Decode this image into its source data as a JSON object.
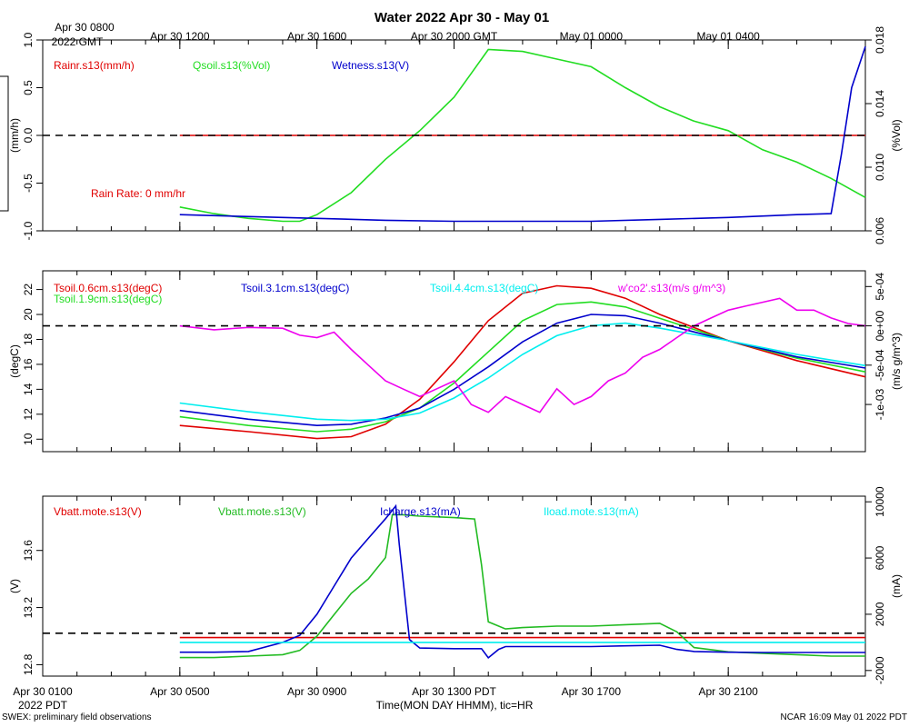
{
  "title": "Water 2022 Apr 30 - May 01",
  "top_axis": {
    "first_label": [
      "Apr 30 0800",
      "2022 GMT"
    ],
    "tick_labels": [
      "Apr 30 1200",
      "Apr 30 1600",
      "Apr 30 2000 GMT",
      "May 01 0000",
      "May 01 0400"
    ]
  },
  "bottom_axis": {
    "first_label": [
      "Apr 30 0100",
      "2022 PDT"
    ],
    "tick_labels": [
      "Apr 30 0500",
      "Apr 30 0900",
      "Apr 30 1300 PDT",
      "Apr 30 1700",
      "Apr 30 2100"
    ],
    "xlabel": "Time(MON DAY HHMM), tic=HR"
  },
  "footer": {
    "left": "SWEX: preliminary field observations",
    "right": "NCAR 16:09 May 01 2022 PDT"
  },
  "colors": {
    "red": "#e00000",
    "green": "#22dd22",
    "blue": "#0000cc",
    "cyan": "#00eeee",
    "magenta": "#ee00ee",
    "dark_green": "#22bb22"
  },
  "chart_data": [
    {
      "type": "line",
      "panel": "water",
      "x_unit": "hours since Apr 30 0100 PDT",
      "xlim": [
        0,
        24
      ],
      "left_axis": {
        "label": "(mm/h)",
        "ylim": [
          -1.0,
          1.0
        ],
        "ticks": [
          "1.0",
          "0.5",
          "0.0",
          "-0.5",
          "-1.0"
        ]
      },
      "right_axis": {
        "label": "(%Vol)",
        "ylim": [
          0.006,
          0.018
        ],
        "ticks": [
          "0.018",
          "0.014",
          "0.010",
          "0.006"
        ]
      },
      "reference_line": 0.0,
      "annotation": "Rain Rate: 0 mm/hr",
      "series": [
        {
          "name": "Rainr.s13(mm/h)",
          "color": "#e00000",
          "axis": "left",
          "x": [
            4,
            24
          ],
          "y": [
            0.0,
            0.0
          ]
        },
        {
          "name": "Qsoil.s13(%Vol)",
          "color": "#22dd22",
          "axis": "left",
          "x": [
            4,
            5,
            6,
            7,
            7.5,
            8,
            9,
            10,
            11,
            12,
            12.5,
            13,
            14,
            15,
            16,
            17,
            18,
            19,
            20,
            21,
            22,
            23,
            24
          ],
          "y": [
            -0.75,
            -0.82,
            -0.87,
            -0.9,
            -0.9,
            -0.83,
            -0.6,
            -0.25,
            0.05,
            0.4,
            0.65,
            0.9,
            0.88,
            0.8,
            0.72,
            0.5,
            0.3,
            0.15,
            0.05,
            -0.15,
            -0.28,
            -0.45,
            -0.65
          ]
        },
        {
          "name": "Wetness.s13(V)",
          "color": "#0000cc",
          "axis": "left",
          "x": [
            4,
            6,
            8,
            10,
            12,
            14,
            16,
            18,
            20,
            22,
            23,
            23.3,
            23.6,
            24
          ],
          "y": [
            -0.83,
            -0.85,
            -0.87,
            -0.89,
            -0.9,
            -0.9,
            -0.9,
            -0.88,
            -0.86,
            -0.83,
            -0.82,
            -0.2,
            0.5,
            0.93
          ]
        }
      ]
    },
    {
      "type": "line",
      "panel": "soil temperature",
      "x_unit": "hours since Apr 30 0100 PDT",
      "xlim": [
        0,
        24
      ],
      "left_axis": {
        "label": "(degC)",
        "ylim": [
          9,
          23.5
        ],
        "ticks": [
          "22",
          "20",
          "18",
          "16",
          "14",
          "12",
          "10"
        ]
      },
      "right_axis": {
        "label": "(m/s g/m^3)",
        "ylim": [
          -0.0016,
          0.0007
        ],
        "ticks": [
          "5e-04",
          "0e+00",
          "-5e-04",
          "-1e-03"
        ]
      },
      "reference_line_right": 0.0,
      "series": [
        {
          "name": "Tsoil.0.6cm.s13(degC)",
          "color": "#e00000",
          "axis": "left",
          "x": [
            4,
            6,
            8,
            9,
            10,
            11,
            12,
            13,
            14,
            15,
            16,
            17,
            18,
            20,
            22,
            24
          ],
          "y": [
            11.1,
            10.6,
            10.05,
            10.2,
            11.2,
            13.2,
            16.2,
            19.5,
            21.7,
            22.3,
            22.1,
            21.3,
            20.0,
            17.9,
            16.3,
            15.0
          ]
        },
        {
          "name": "Tsoil.1.9cm.s13(degC)",
          "color": "#22dd22",
          "axis": "left",
          "x": [
            4,
            6,
            8,
            9,
            10,
            11,
            12,
            13,
            14,
            15,
            16,
            17,
            18,
            20,
            22,
            24
          ],
          "y": [
            11.8,
            11.1,
            10.6,
            10.8,
            11.4,
            12.5,
            14.5,
            17.0,
            19.5,
            20.8,
            21.0,
            20.6,
            19.7,
            17.9,
            16.5,
            15.4
          ]
        },
        {
          "name": "Tsoil.3.1cm.s13(degC)",
          "color": "#0000cc",
          "axis": "left",
          "x": [
            4,
            6,
            8,
            9,
            10,
            11,
            12,
            13,
            14,
            15,
            16,
            17,
            18,
            20,
            22,
            24
          ],
          "y": [
            12.3,
            11.6,
            11.1,
            11.2,
            11.7,
            12.5,
            14.0,
            15.8,
            17.8,
            19.3,
            20.0,
            19.9,
            19.3,
            17.9,
            16.6,
            15.7
          ]
        },
        {
          "name": "Tsoil.4.4cm.s13(degC)",
          "color": "#00eeee",
          "axis": "left",
          "x": [
            4,
            6,
            8,
            9,
            10,
            11,
            12,
            13,
            14,
            15,
            16,
            17,
            18,
            20,
            22,
            24
          ],
          "y": [
            12.9,
            12.2,
            11.6,
            11.5,
            11.6,
            12.1,
            13.3,
            14.9,
            16.8,
            18.3,
            19.1,
            19.3,
            18.9,
            17.9,
            16.8,
            15.9
          ]
        },
        {
          "name": "w'co2'.s13(m/s g/m^3)",
          "color": "#ee00ee",
          "axis": "right",
          "x": [
            4,
            5,
            6,
            7,
            7.5,
            8,
            8.5,
            9,
            9.5,
            10,
            10.5,
            11,
            11.5,
            12,
            12.5,
            13,
            13.5,
            14,
            14.5,
            15,
            15.5,
            16,
            16.5,
            17,
            17.5,
            18,
            18.5,
            19,
            19.5,
            20,
            20.5,
            21,
            21.5,
            22,
            22.5,
            23,
            23.5,
            24
          ],
          "y": [
            0.0,
            -5e-05,
            -2e-05,
            -3e-05,
            -0.00012,
            -0.00015,
            -8e-05,
            -0.0003,
            -0.0005,
            -0.0007,
            -0.0008,
            -0.0009,
            -0.0008,
            -0.0007,
            -0.001,
            -0.0011,
            -0.0009,
            -0.001,
            -0.0011,
            -0.0008,
            -0.001,
            -0.0009,
            -0.0007,
            -0.0006,
            -0.0004,
            -0.0003,
            -0.00015,
            0.0,
            0.0001,
            0.0002,
            0.00025,
            0.0003,
            0.00035,
            0.0002,
            0.0002,
            0.0001,
            3e-05,
            0.0
          ]
        }
      ]
    },
    {
      "type": "line",
      "panel": "power",
      "x_unit": "hours since Apr 30 0100 PDT",
      "xlim": [
        0,
        24
      ],
      "left_axis": {
        "label": "(V)",
        "ylim": [
          12.72,
          13.98
        ],
        "ticks": [
          "13.6",
          "13.2",
          "12.8"
        ]
      },
      "right_axis": {
        "label": "(mA)",
        "ylim": [
          -2400,
          10400
        ],
        "ticks": [
          "10000",
          "6000",
          "2000",
          "-2000"
        ]
      },
      "reference_line_left": 13.02,
      "series": [
        {
          "name": "Vbatt.mote.s13(V)",
          "color": "#e00000",
          "axis": "left",
          "x": [
            4,
            24
          ],
          "y": [
            12.99,
            12.99
          ]
        },
        {
          "name": "Vbatt.mote.s13(V)",
          "color": "#22bb22",
          "axis": "left",
          "x": [
            4,
            5,
            6,
            7,
            7.5,
            8,
            8.5,
            9,
            9.5,
            10,
            10.2,
            10.5,
            11,
            12,
            12.6,
            12.8,
            13.0,
            13.5,
            14,
            15,
            16,
            17,
            18,
            18.5,
            19,
            20,
            21,
            22,
            23,
            24
          ],
          "y": [
            12.85,
            12.85,
            12.86,
            12.87,
            12.9,
            13.0,
            13.15,
            13.3,
            13.4,
            13.55,
            13.85,
            13.85,
            13.84,
            13.83,
            13.82,
            13.5,
            13.1,
            13.05,
            13.06,
            13.07,
            13.07,
            13.08,
            13.09,
            13.03,
            12.92,
            12.89,
            12.88,
            12.87,
            12.86,
            12.86
          ]
        },
        {
          "name": "Icharge.s13(mA)",
          "color": "#0000cc",
          "axis": "right",
          "x": [
            4,
            5,
            6,
            7,
            7.5,
            8,
            8.5,
            9,
            9.5,
            10,
            10.3,
            10.4,
            10.7,
            11,
            12,
            12.8,
            13.0,
            13.3,
            13.5,
            14,
            15,
            16,
            17,
            18,
            18.5,
            19,
            20,
            21,
            22,
            23,
            24
          ],
          "y": [
            -700,
            -700,
            -650,
            0,
            500,
            2000,
            4000,
            6000,
            7400,
            8800,
            9700,
            7000,
            200,
            -400,
            -450,
            -450,
            -1100,
            -500,
            -300,
            -300,
            -300,
            -300,
            -250,
            -200,
            -500,
            -650,
            -700,
            -720,
            -720,
            -720,
            -720
          ]
        },
        {
          "name": "Iload.mote.s13(mA)",
          "color": "#00eeee",
          "axis": "right",
          "x": [
            4,
            24
          ],
          "y": [
            0,
            0
          ]
        }
      ]
    }
  ]
}
